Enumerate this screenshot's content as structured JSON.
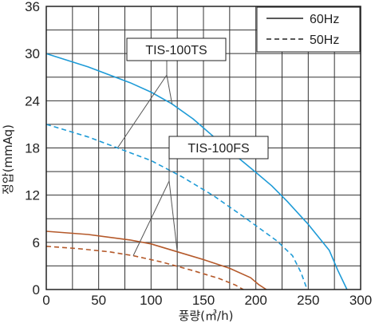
{
  "chart_data": {
    "type": "line",
    "xlabel": "풍량(㎥/h)",
    "ylabel": "정압(mmAq)",
    "xlim": [
      0,
      300
    ],
    "ylim": [
      0,
      36
    ],
    "x_ticks": [
      "0",
      "50",
      "100",
      "150",
      "200",
      "250",
      "300"
    ],
    "y_ticks": [
      "0",
      "6",
      "12",
      "18",
      "24",
      "30",
      "36"
    ],
    "x_tick_values": [
      0,
      50,
      100,
      150,
      200,
      250,
      300
    ],
    "y_tick_values": [
      0,
      6,
      12,
      18,
      24,
      30,
      36
    ],
    "x_grid_step": 25,
    "y_grid_step": 3,
    "grid": true,
    "legend_position": "top-right",
    "legend": [
      {
        "label": "60Hz",
        "style": "solid"
      },
      {
        "label": "50Hz",
        "style": "dashed"
      }
    ],
    "annotations": [
      {
        "text": "TIS-100TS",
        "points_to_x": [
          68,
          120
        ]
      },
      {
        "text": "TIS-100FS",
        "points_to_x": [
          83,
          125
        ]
      }
    ],
    "series": [
      {
        "model": "TIS-100TS",
        "freq": "60Hz",
        "style": "solid",
        "color": "#1e9bd7",
        "x": [
          0,
          40,
          80,
          100,
          120,
          140,
          160,
          180,
          200,
          215,
          230,
          250,
          270,
          278,
          287
        ],
        "y": [
          30,
          28.3,
          26.3,
          25.1,
          23.6,
          21.7,
          19.4,
          17.1,
          14.9,
          13.2,
          11.2,
          8.3,
          5,
          2.5,
          0
        ]
      },
      {
        "model": "TIS-100TS",
        "freq": "50Hz",
        "style": "dashed",
        "color": "#1e9bd7",
        "x": [
          0,
          40,
          68,
          100,
          130,
          160,
          190,
          220,
          235,
          243,
          249
        ],
        "y": [
          21,
          19.4,
          18,
          16.4,
          14.3,
          11.9,
          9.1,
          6.2,
          4.3,
          2.2,
          0
        ]
      },
      {
        "model": "TIS-100FS",
        "freq": "60Hz",
        "style": "solid",
        "color": "#b5592a",
        "x": [
          0,
          40,
          80,
          100,
          125,
          150,
          175,
          195,
          203,
          210
        ],
        "y": [
          7.4,
          7,
          6.3,
          5.8,
          4.8,
          3.8,
          2.7,
          1.5,
          0.6,
          0
        ]
      },
      {
        "model": "TIS-100FS",
        "freq": "50Hz",
        "style": "dashed",
        "color": "#b5592a",
        "x": [
          0,
          30,
          60,
          83,
          110,
          140,
          165,
          180,
          188
        ],
        "y": [
          5.5,
          5.2,
          4.8,
          4.3,
          3.5,
          2.4,
          1.4,
          0.6,
          0
        ]
      }
    ]
  }
}
